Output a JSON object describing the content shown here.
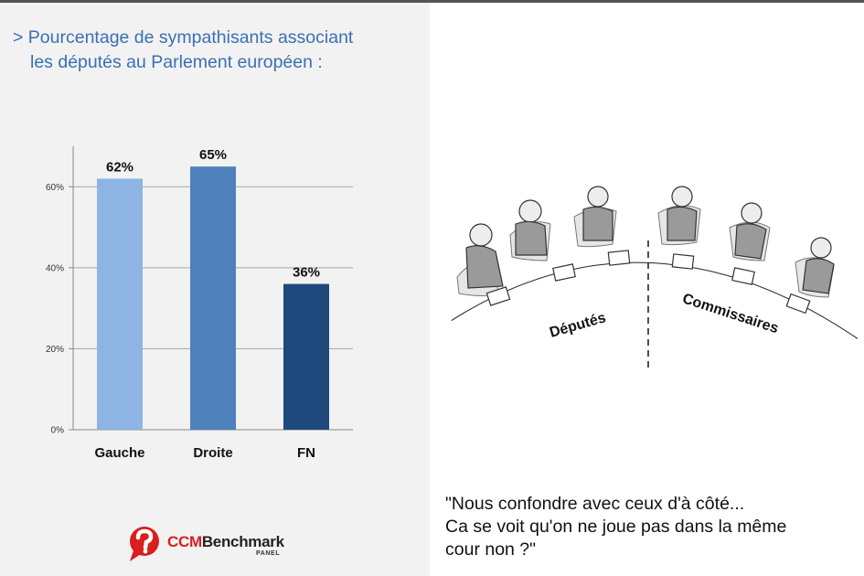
{
  "title_lines": [
    "> Pourcentage de sympathisants associant",
    "les députés au Parlement européen :"
  ],
  "chart_data": {
    "type": "bar",
    "categories": [
      "Gauche",
      "Droite",
      "FN"
    ],
    "values": [
      62,
      65,
      36
    ],
    "data_labels": [
      "62%",
      "65%",
      "36%"
    ],
    "colors": [
      "#8db4e3",
      "#4f81bd",
      "#1f497d"
    ],
    "ylim": [
      0,
      70
    ],
    "yticks": [
      0,
      20,
      40,
      60
    ],
    "ytick_labels": [
      "0%",
      "20%",
      "40%",
      "60%"
    ],
    "grid": true
  },
  "cartoon": {
    "labels": [
      "Députés",
      "Commissaires"
    ]
  },
  "caption_lines": [
    "\"Nous confondre avec ceux d'à côté...",
    "Ca se voit qu'on ne joue pas dans la même",
    "cour non ?\""
  ],
  "logo": {
    "ccm": "CCM",
    "brand": "Benchmark",
    "sub": "PANEL",
    "color": "#d81e1e"
  }
}
